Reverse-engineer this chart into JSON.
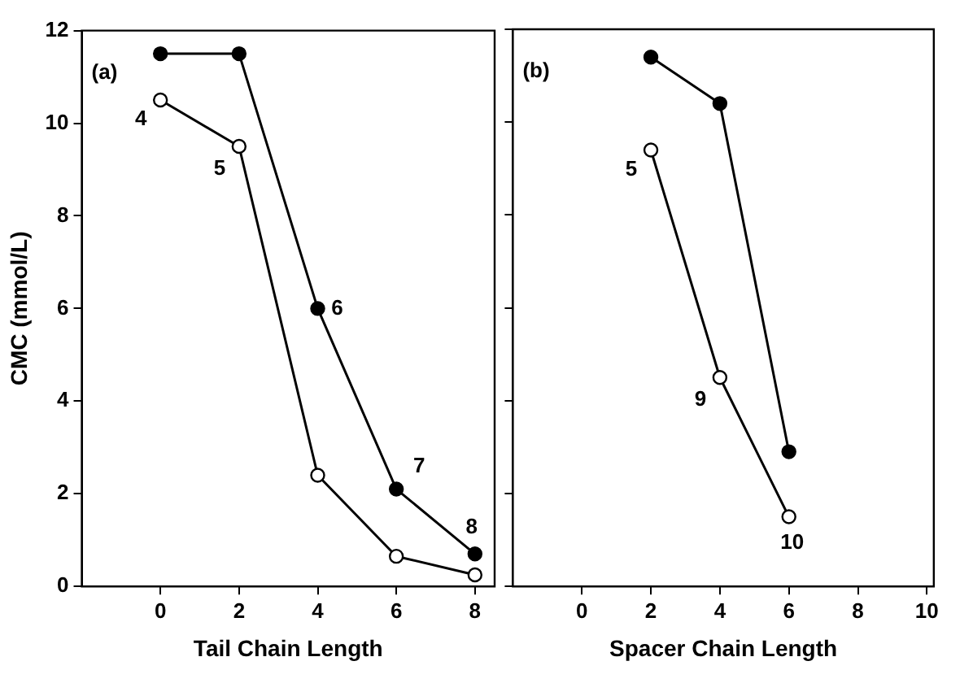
{
  "chart_data": [
    {
      "type": "line",
      "xlabel": "Tail Chain Length",
      "ylabel": "CMC (mmol/L)",
      "xlim": [
        -2,
        8.5
      ],
      "xticks": [
        0,
        2,
        4,
        6,
        8
      ],
      "ylim": [
        0,
        12
      ],
      "yticks": [
        0,
        2,
        4,
        6,
        8,
        10,
        12
      ],
      "grid": false,
      "legend": false,
      "marker": "circle",
      "line_style": "solid",
      "series": [
        {
          "color": "#000000",
          "x": [
            0,
            2,
            4,
            6,
            8
          ],
          "values": [
            11.5,
            11.5,
            6,
            2.1,
            0.7
          ]
        },
        {
          "color": "#000000",
          "x": [
            0,
            2,
            4,
            6,
            8
          ],
          "values": [
            10.5,
            9.5,
            2.4,
            0.65,
            0.25
          ]
        }
      ],
      "annotations": [
        "(a)",
        {
          "text": "4",
          "x": 0,
          "y": 10.5
        },
        {
          "text": "5",
          "x": 2,
          "y": 9.5
        },
        {
          "text": "6",
          "x": 4,
          "y": 6
        },
        {
          "text": "7",
          "x": 6,
          "y": 2.1
        },
        {
          "text": "8",
          "x": 8,
          "y": 0.7
        }
      ]
    },
    {
      "type": "line",
      "xlabel": "Spacer Chain Length",
      "xlim": [
        -2,
        10.2
      ],
      "xticks": [
        0,
        2,
        4,
        6,
        8,
        10
      ],
      "ylim": [
        0,
        12
      ],
      "yticks": [
        0,
        2,
        4,
        6,
        8,
        10,
        12
      ],
      "tick_labels": "x",
      "grid": false,
      "legend": false,
      "marker": "circle",
      "line_style": "solid",
      "series": [
        {
          "color": "#000000",
          "x": [
            2,
            4,
            6
          ],
          "values": [
            11.4,
            10.4,
            2.9
          ]
        },
        {
          "color": "#000000",
          "x": [
            2,
            4,
            6
          ],
          "values": [
            9.4,
            4.5,
            1.5
          ]
        }
      ],
      "annotations": [
        "(b)",
        {
          "text": "5",
          "x": 2,
          "y": 9.4
        },
        {
          "text": "9",
          "x": 4,
          "y": 4.5
        },
        {
          "text": "10",
          "x": 6,
          "y": 1.5
        }
      ]
    }
  ]
}
